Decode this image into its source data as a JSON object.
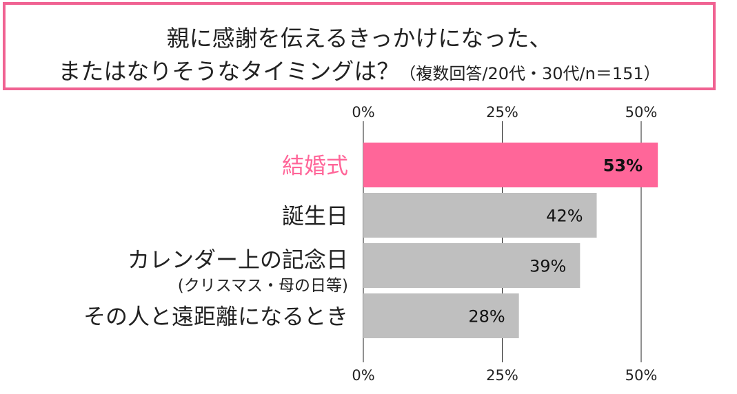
{
  "title": {
    "line1": "親に感謝を伝えるきっかけになった、",
    "line2": "またはなりそうなタイミングは？",
    "note": "（複数回答/20代・30代/n＝151）"
  },
  "chart_data": {
    "type": "bar",
    "orientation": "horizontal",
    "categories": [
      [
        "結婚式"
      ],
      [
        "誕生日"
      ],
      [
        "カレンダー上の記念日",
        "(クリスマス・母の日等)"
      ],
      [
        "その人と遠距離になるとき"
      ]
    ],
    "values": [
      53,
      42,
      39,
      28
    ],
    "value_labels": [
      "53%",
      "42%",
      "39%",
      "28%"
    ],
    "highlight_index": 0,
    "xlim": [
      0,
      50
    ],
    "ticks": [
      0,
      25,
      50
    ],
    "tick_labels": [
      "0%",
      "25%",
      "50%"
    ],
    "grid": true,
    "colors": {
      "highlight": "#ff6699",
      "bar": "#bfbfbf",
      "highlight_label": "#ff6699",
      "label": "#222222",
      "axis": "#222222",
      "title_border": "#f06292"
    }
  }
}
